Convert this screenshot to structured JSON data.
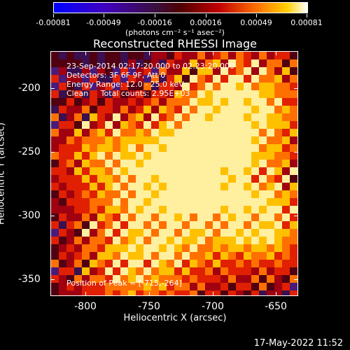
{
  "colorbar": {
    "labels": [
      "-0.00081",
      "-0.00049",
      "-0.00016",
      "0.00016",
      "0.00049",
      "0.00081"
    ],
    "units": "(photons cm⁻² s⁻¹ asec⁻²)"
  },
  "title": "Reconstructed RHESSI Image",
  "info": {
    "line1": "23-Sep-2014 02:17:20.000 to 02:23:20.000",
    "line2": "Detectors: 3F 6F 9F, Att 0",
    "line3": "Energy Range: 12.0 - 25.0 keV",
    "line4": "Clean     Total counts: 2.95E+03"
  },
  "peak": "Position of Peak = [-715,-264]",
  "axes": {
    "x_title": "Heliocentric X (arcsec)",
    "y_title": "Heliocentric Y (arcsec)",
    "x_ticks": [
      "-800",
      "-750",
      "-700",
      "-650"
    ],
    "y_ticks": [
      "-200",
      "-250",
      "-300",
      "-350"
    ]
  },
  "footer": "17-May-2022 11:52"
}
